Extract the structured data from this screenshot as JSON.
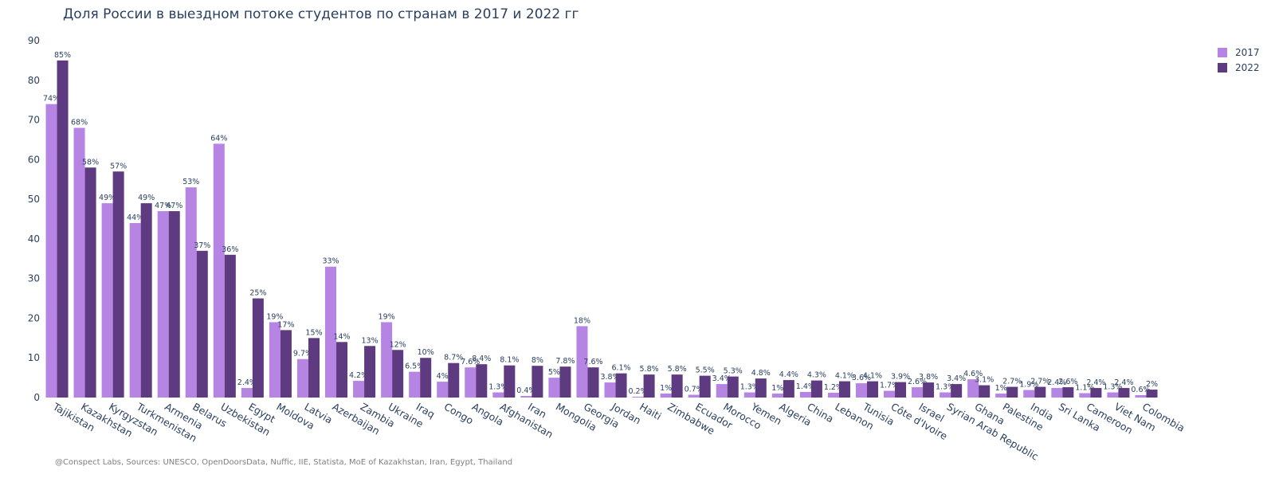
{
  "chart_data": {
    "type": "bar",
    "title": "Доля России в выездном потоке студентов по странам в 2017 и 2022 гг",
    "source": "@Conspect Labs, Sources: UNESCO, OpenDoorsData, Nuffic, IIE, Statista, MoE of Kazakhstan, Iran, Egypt, Thailand",
    "ylim": [
      0,
      90
    ],
    "yticks": [
      0,
      10,
      20,
      30,
      40,
      50,
      60,
      70,
      80,
      90
    ],
    "grid": false,
    "legend_position": "top-right",
    "categories": [
      "Tajikistan",
      "Kazakhstan",
      "Kyrgyzstan",
      "Turkmenistan",
      "Armenia",
      "Belarus",
      "Uzbekistan",
      "Egypt",
      "Moldova",
      "Latvia",
      "Azerbaijan",
      "Zambia",
      "Ukraine",
      "Iraq",
      "Congo",
      "Angola",
      "Afghanistan",
      "Iran",
      "Mongolia",
      "Georgia",
      "Jordan",
      "Haiti",
      "Zimbabwe",
      "Ecuador",
      "Morocco",
      "Yemen",
      "Algeria",
      "China",
      "Lebanon",
      "Tunisia",
      "Côte d'Ivoire",
      "Israel",
      "Syrian Arab Republic",
      "Ghana",
      "Palestine",
      "India",
      "Sri Lanka",
      "Cameroon",
      "Viet Nam",
      "Colombia"
    ],
    "series": [
      {
        "name": "2017",
        "color": "#b685e3",
        "values": [
          74,
          68,
          49,
          44,
          47,
          53,
          64,
          2.4,
          19,
          9.7,
          33,
          4.2,
          19,
          6.5,
          4,
          7.6,
          1.3,
          0.4,
          5,
          18,
          3.8,
          0.2,
          1,
          0.7,
          3.4,
          1.3,
          1,
          1.4,
          1.2,
          3.6,
          1.7,
          2.6,
          1.3,
          4.6,
          1,
          1.9,
          2.4,
          1.1,
          1.3,
          0.6
        ],
        "labels": [
          "74%",
          "68%",
          "49%",
          "44%",
          "47%",
          "53%",
          "64%",
          "2.4%",
          "19%",
          "9.7%",
          "33%",
          "4.2%",
          "19%",
          "6.5%",
          "4%",
          "7.6%",
          "1.3%",
          "0.4%",
          "5%",
          "18%",
          "3.8%",
          "0.2%",
          "1%",
          "0.7%",
          "3.4%",
          "1.3%",
          "1%",
          "1.4%",
          "1.2%",
          "3.6%",
          "1.7%",
          "2.6%",
          "1.3%",
          "4.6%",
          "1%",
          "1.9%",
          "2.4%",
          "1.1%",
          "1.3%",
          "0.6%"
        ]
      },
      {
        "name": "2022",
        "color": "#5e3a80",
        "values": [
          85,
          58,
          57,
          49,
          47,
          37,
          36,
          25,
          17,
          15,
          14,
          13,
          12,
          10,
          8.7,
          8.4,
          8.1,
          8,
          7.8,
          7.6,
          6.1,
          5.8,
          5.8,
          5.5,
          5.3,
          4.8,
          4.4,
          4.3,
          4.1,
          4.1,
          3.9,
          3.8,
          3.4,
          3.1,
          2.7,
          2.7,
          2.6,
          2.4,
          2.4,
          2
        ],
        "labels": [
          "85%",
          "58%",
          "57%",
          "49%",
          "47%",
          "37%",
          "36%",
          "25%",
          "17%",
          "15%",
          "14%",
          "13%",
          "12%",
          "10%",
          "8.7%",
          "8.4%",
          "8.1%",
          "8%",
          "7.8%",
          "7.6%",
          "6.1%",
          "5.8%",
          "5.8%",
          "5.5%",
          "5.3%",
          "4.8%",
          "4.4%",
          "4.3%",
          "4.1%",
          "4.1%",
          "3.9%",
          "3.8%",
          "3.4%",
          "3.1%",
          "2.7%",
          "2.7%",
          "2.6%",
          "2.4%",
          "2.4%",
          "2%"
        ]
      }
    ]
  }
}
